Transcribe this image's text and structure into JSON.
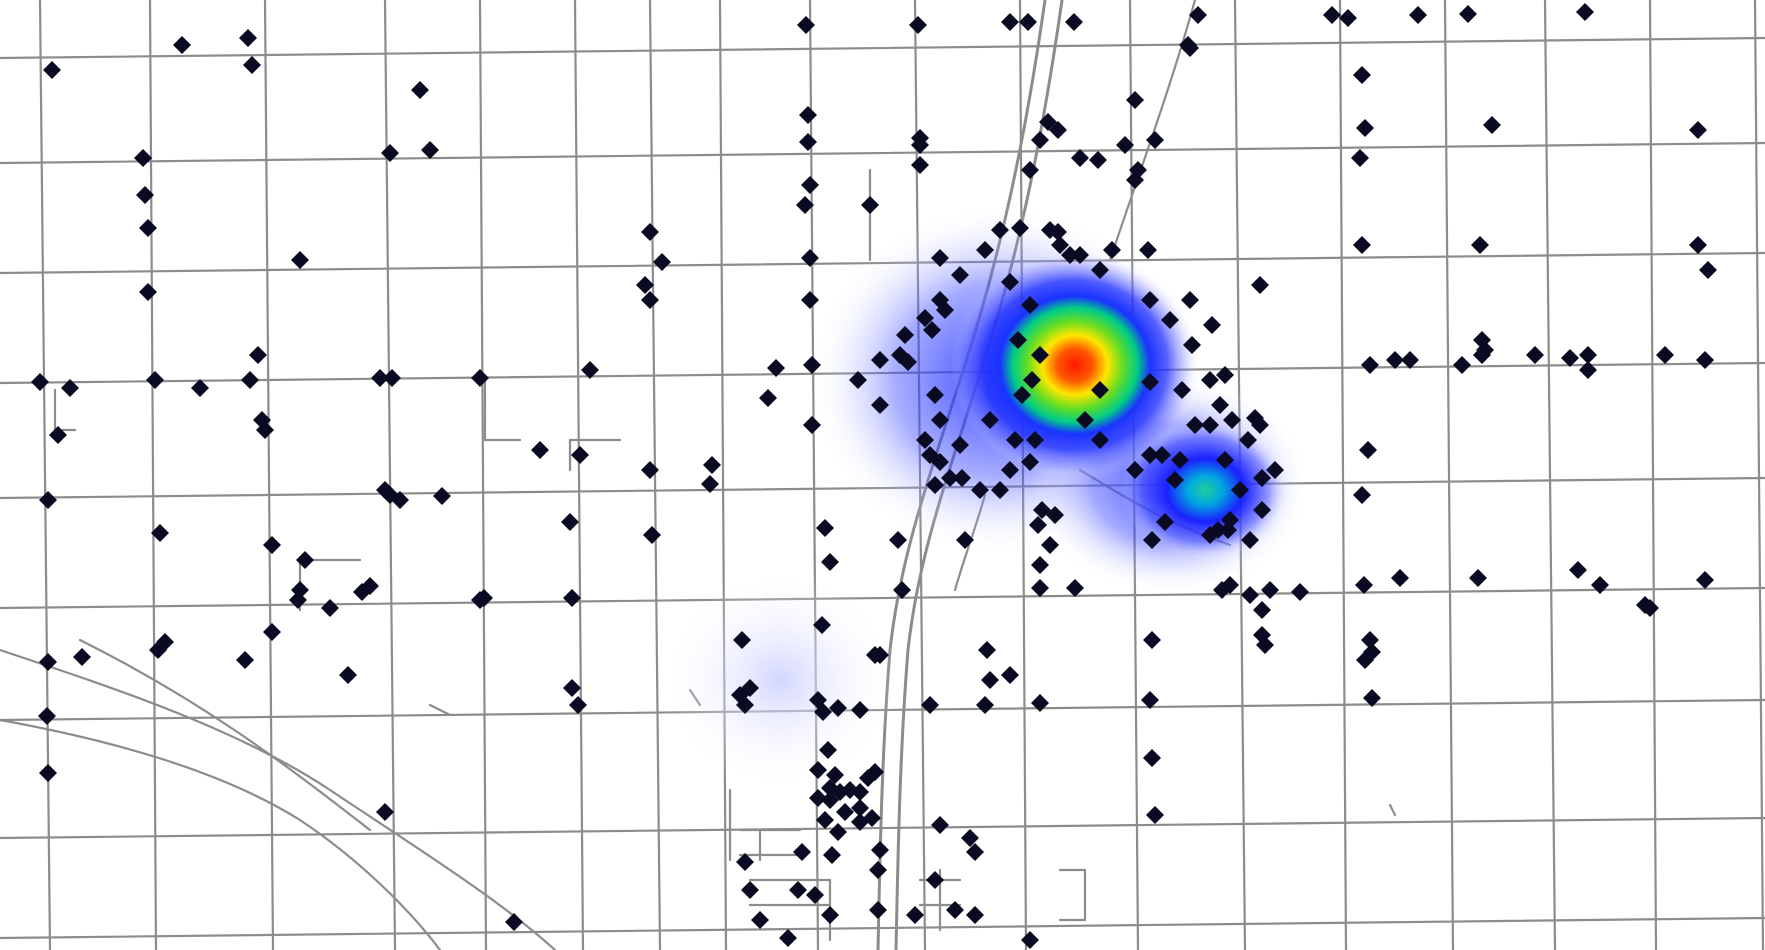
{
  "map": {
    "type": "heatmap-overlay-on-road-network",
    "background_color": "#ffffff",
    "road_color": "#8c8c8c",
    "marker_color": "#0a0a22",
    "marker_shape": "diamond",
    "heat_colors": [
      "#ffffff",
      "#1010ff",
      "#00dd55",
      "#ffff00",
      "#ff1a00"
    ],
    "hotspots": [
      {
        "name": "primary-hotspot",
        "intensity": 1.0
      },
      {
        "name": "secondary-hotspot",
        "intensity": 0.55
      },
      {
        "name": "faint-southwest-glow",
        "intensity": 0.12
      }
    ]
  }
}
